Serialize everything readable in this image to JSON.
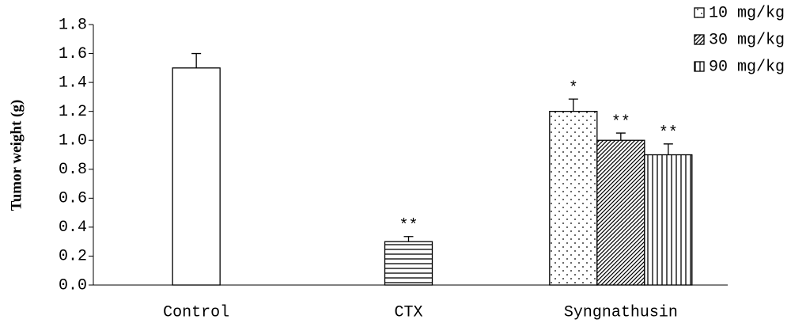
{
  "chart_data": {
    "type": "bar",
    "y_label": "Tumor weight (g)",
    "categories": [
      "Control",
      "CTX",
      "Syngnathusin"
    ],
    "series": [
      {
        "name": "10 mg/kg",
        "color": "#000000",
        "patterns": [
          "dots",
          "dots",
          "dots"
        ],
        "values": [
          0,
          0,
          1.2
        ],
        "errors": [
          null,
          null,
          0.085
        ],
        "annotations": [
          null,
          null,
          "*"
        ]
      },
      {
        "name": "30 mg/kg",
        "color": "#000000",
        "patterns": [
          "none",
          "horizontal",
          "diagonal"
        ],
        "values": [
          1.5,
          0.3,
          1.0
        ],
        "errors": [
          0.1,
          0.035,
          0.05
        ],
        "annotations": [
          null,
          "**",
          "**"
        ]
      },
      {
        "name": "90 mg/kg",
        "color": "#000000",
        "patterns": [
          "vertical",
          "vertical",
          "vertical"
        ],
        "values": [
          0,
          0,
          0.9
        ],
        "errors": [
          null,
          null,
          0.075
        ],
        "annotations": [
          null,
          null,
          "**"
        ]
      }
    ],
    "ylim": [
      0,
      1.8
    ],
    "yticks": [
      {
        "value": 0,
        "label": "0.0"
      },
      0.2,
      0.4,
      0.6,
      0.8,
      {
        "value": 1,
        "label": "1.0"
      },
      1.2,
      1.4,
      1.6,
      1.8
    ],
    "legend": "top-right"
  }
}
